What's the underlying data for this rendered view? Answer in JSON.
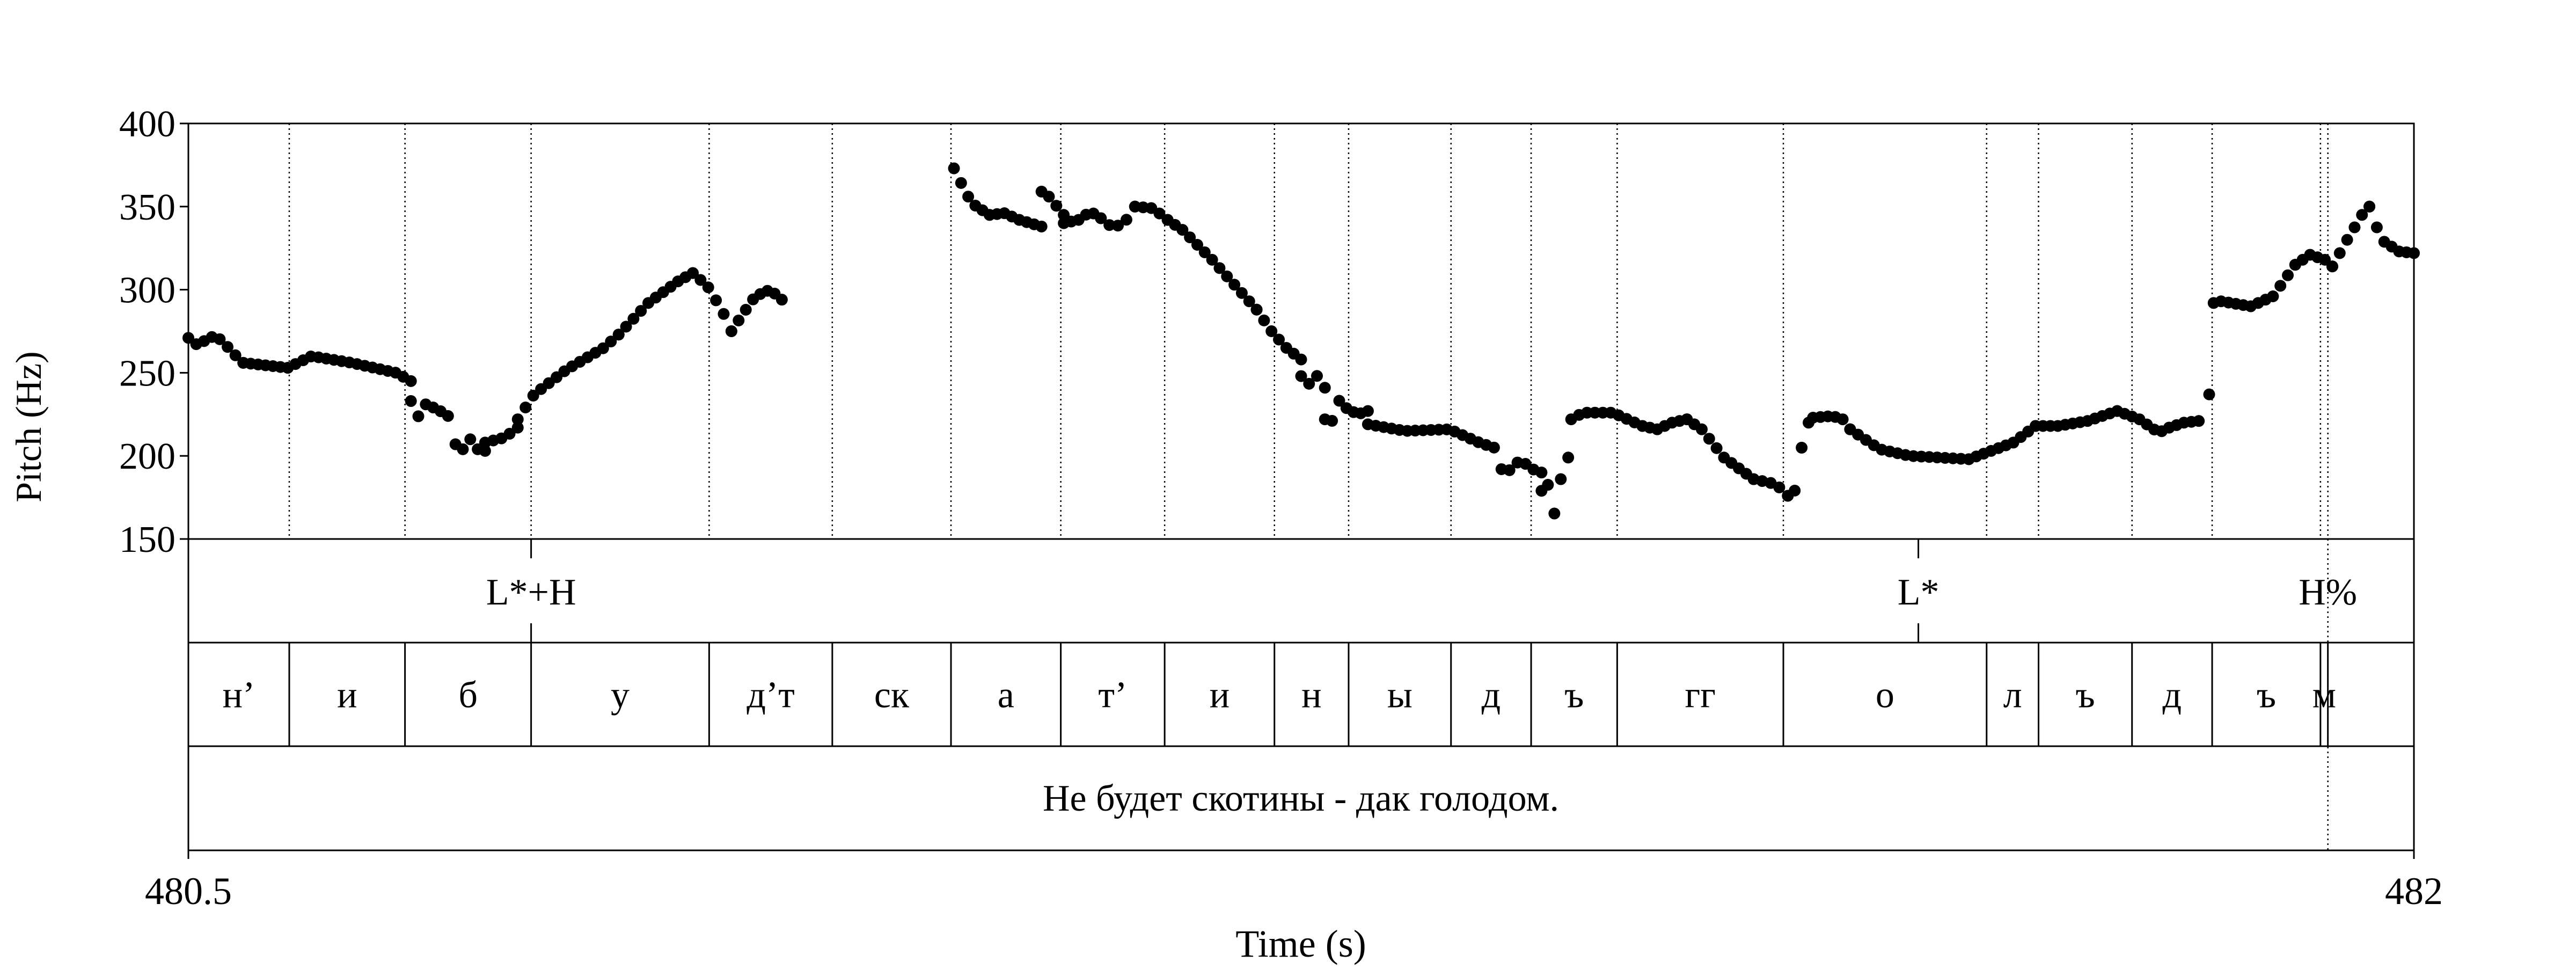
{
  "chart_data": {
    "type": "scatter",
    "xlabel": "Time (s)",
    "ylabel": "Pitch (Hz)",
    "xlim": [
      480.5,
      482
    ],
    "ylim": [
      150,
      400
    ],
    "x_ticks": [
      "480.5",
      "482"
    ],
    "y_ticks": [
      "400",
      "350",
      "300",
      "250",
      "200",
      "150"
    ],
    "y_tick_values": [
      400,
      350,
      300,
      250,
      200,
      150
    ],
    "boundaries": [
      480.5,
      480.568,
      480.646,
      480.731,
      480.851,
      480.934,
      481.014,
      481.088,
      481.158,
      481.232,
      481.282,
      481.351,
      481.405,
      481.463,
      481.575,
      481.712,
      481.747,
      481.81,
      481.864,
      481.937,
      481.942,
      482.0
    ],
    "segments": [
      "н’",
      "и",
      "б",
      "у",
      "д’т",
      "ск",
      "а",
      "т’",
      "и",
      "н",
      "ы",
      "д",
      "ъ",
      "гг",
      "о",
      "л",
      "ъ",
      "д",
      "ъ",
      "м"
    ],
    "tones": [
      {
        "label": "L*+H",
        "t": 480.731
      },
      {
        "label": "L*",
        "t": 481.666
      },
      {
        "label": "H%",
        "t": 481.942
      }
    ],
    "sentence": "Не будет скотины - дак голодом.",
    "sentence_marker_t": 481.942,
    "pitch_segments": [
      {
        "t0": 480.5,
        "t1": 480.537,
        "pts": [
          [
            480.5,
            271
          ],
          [
            480.507,
            266
          ],
          [
            480.514,
            272
          ],
          [
            480.522,
            270
          ],
          [
            480.53,
            262
          ],
          [
            480.537,
            256
          ]
        ]
      },
      {
        "t0": 480.537,
        "t1": 480.567,
        "pts": [
          [
            480.537,
            256
          ],
          [
            480.567,
            253
          ]
        ]
      },
      {
        "t0": 480.567,
        "t1": 480.65,
        "pts": [
          [
            480.567,
            253
          ],
          [
            480.583,
            260
          ],
          [
            480.61,
            256
          ],
          [
            480.64,
            250
          ],
          [
            480.65,
            245
          ]
        ]
      },
      {
        "t0": 480.65,
        "t1": 480.68,
        "pts": [
          [
            480.65,
            233
          ],
          [
            480.656,
            222
          ],
          [
            480.66,
            231
          ],
          [
            480.668,
            228
          ],
          [
            480.675,
            224
          ]
        ]
      },
      {
        "t0": 480.68,
        "t1": 480.7,
        "pts": [
          [
            480.68,
            207
          ],
          [
            480.685,
            204
          ],
          [
            480.69,
            210
          ],
          [
            480.695,
            204
          ],
          [
            480.7,
            203
          ]
        ]
      },
      {
        "t0": 480.7,
        "t1": 480.722,
        "pts": [
          [
            480.7,
            208
          ],
          [
            480.713,
            211
          ],
          [
            480.722,
            217
          ]
        ]
      },
      {
        "t0": 480.722,
        "t1": 480.79,
        "pts": [
          [
            480.722,
            222
          ],
          [
            480.733,
            237
          ],
          [
            480.755,
            252
          ],
          [
            480.78,
            265
          ],
          [
            480.79,
            273
          ]
        ]
      },
      {
        "t0": 480.79,
        "t1": 480.84,
        "pts": [
          [
            480.79,
            273
          ],
          [
            480.81,
            292
          ],
          [
            480.83,
            305
          ],
          [
            480.84,
            310
          ]
        ]
      },
      {
        "t0": 480.84,
        "t1": 480.866,
        "pts": [
          [
            480.84,
            310
          ],
          [
            480.85,
            302
          ],
          [
            480.86,
            287
          ],
          [
            480.866,
            275
          ]
        ]
      },
      {
        "t0": 480.866,
        "t1": 480.9,
        "pts": [
          [
            480.866,
            275
          ],
          [
            480.875,
            287
          ],
          [
            480.882,
            296
          ],
          [
            480.892,
            300
          ],
          [
            480.9,
            294
          ]
        ]
      },
      {
        "t0": 481.016,
        "t1": 481.04,
        "pts": [
          [
            481.016,
            373
          ],
          [
            481.022,
            362
          ],
          [
            481.028,
            352
          ],
          [
            481.04,
            345
          ]
        ]
      },
      {
        "t0": 481.04,
        "t1": 481.06,
        "pts": [
          [
            481.04,
            345
          ],
          [
            481.05,
            346
          ],
          [
            481.06,
            342
          ]
        ]
      },
      {
        "t0": 481.06,
        "t1": 481.075,
        "pts": [
          [
            481.06,
            342
          ],
          [
            481.075,
            338
          ]
        ]
      },
      {
        "t0": 481.075,
        "t1": 481.09,
        "pts": [
          [
            481.075,
            359
          ],
          [
            481.08,
            356
          ],
          [
            481.09,
            345
          ]
        ]
      },
      {
        "t0": 481.09,
        "t1": 481.115,
        "pts": [
          [
            481.09,
            340
          ],
          [
            481.1,
            342
          ],
          [
            481.108,
            347
          ],
          [
            481.115,
            343
          ]
        ]
      },
      {
        "t0": 481.115,
        "t1": 481.138,
        "pts": [
          [
            481.115,
            343
          ],
          [
            481.122,
            338
          ],
          [
            481.13,
            339
          ],
          [
            481.138,
            350
          ]
        ]
      },
      {
        "t0": 481.138,
        "t1": 481.16,
        "pts": [
          [
            481.138,
            350
          ],
          [
            481.15,
            349
          ],
          [
            481.16,
            342
          ]
        ]
      },
      {
        "t0": 481.16,
        "t1": 481.22,
        "pts": [
          [
            481.16,
            342
          ],
          [
            481.17,
            336
          ],
          [
            481.19,
            318
          ],
          [
            481.22,
            288
          ]
        ]
      },
      {
        "t0": 481.22,
        "t1": 481.25,
        "pts": [
          [
            481.22,
            288
          ],
          [
            481.23,
            275
          ],
          [
            481.24,
            265
          ],
          [
            481.25,
            258
          ]
        ]
      },
      {
        "t0": 481.25,
        "t1": 481.266,
        "pts": [
          [
            481.25,
            248
          ],
          [
            481.255,
            243
          ],
          [
            481.26,
            249
          ],
          [
            481.266,
            241
          ]
        ]
      },
      {
        "t0": 481.266,
        "t1": 481.295,
        "pts": [
          [
            481.266,
            222
          ],
          [
            481.27,
            219
          ],
          [
            481.276,
            234
          ],
          [
            481.28,
            229
          ],
          [
            481.288,
            225
          ],
          [
            481.295,
            227
          ]
        ]
      },
      {
        "t0": 481.295,
        "t1": 481.38,
        "pts": [
          [
            481.295,
            219
          ],
          [
            481.32,
            215
          ],
          [
            481.35,
            216
          ],
          [
            481.37,
            208
          ],
          [
            481.38,
            205
          ]
        ]
      },
      {
        "t0": 481.38,
        "t1": 481.412,
        "pts": [
          [
            481.385,
            192
          ],
          [
            481.39,
            191
          ],
          [
            481.395,
            196
          ],
          [
            481.4,
            196
          ],
          [
            481.406,
            192
          ],
          [
            481.412,
            190
          ]
        ]
      },
      {
        "t0": 481.412,
        "t1": 481.425,
        "pts": [
          [
            481.412,
            179
          ],
          [
            481.418,
            184
          ],
          [
            481.422,
            156
          ],
          [
            481.425,
            186
          ]
        ]
      },
      {
        "t0": 481.425,
        "t1": 481.43,
        "pts": [
          [
            481.43,
            199
          ]
        ]
      },
      {
        "t0": 481.43,
        "t1": 481.48,
        "pts": [
          [
            481.432,
            222
          ],
          [
            481.44,
            226
          ],
          [
            481.46,
            226
          ],
          [
            481.48,
            218
          ]
        ]
      },
      {
        "t0": 481.48,
        "t1": 481.51,
        "pts": [
          [
            481.48,
            218
          ],
          [
            481.49,
            216
          ],
          [
            481.5,
            220
          ],
          [
            481.51,
            222
          ]
        ]
      },
      {
        "t0": 481.51,
        "t1": 481.555,
        "pts": [
          [
            481.51,
            222
          ],
          [
            481.52,
            216
          ],
          [
            481.535,
            199
          ],
          [
            481.555,
            186
          ]
        ]
      },
      {
        "t0": 481.555,
        "t1": 481.578,
        "pts": [
          [
            481.555,
            186
          ],
          [
            481.57,
            183
          ],
          [
            481.578,
            176
          ]
        ]
      },
      {
        "t0": 481.578,
        "t1": 481.592,
        "pts": [
          [
            481.578,
            176
          ],
          [
            481.582,
            174
          ],
          [
            481.585,
            197
          ],
          [
            481.59,
            214
          ],
          [
            481.592,
            220
          ]
        ]
      },
      {
        "t0": 481.592,
        "t1": 481.62,
        "pts": [
          [
            481.595,
            223
          ],
          [
            481.608,
            224
          ],
          [
            481.615,
            222
          ],
          [
            481.62,
            216
          ]
        ]
      },
      {
        "t0": 481.62,
        "t1": 481.7,
        "pts": [
          [
            481.62,
            216
          ],
          [
            481.64,
            204
          ],
          [
            481.66,
            200
          ],
          [
            481.7,
            198
          ]
        ]
      },
      {
        "t0": 481.7,
        "t1": 481.745,
        "pts": [
          [
            481.7,
            198
          ],
          [
            481.715,
            203
          ],
          [
            481.73,
            208
          ],
          [
            481.745,
            218
          ]
        ]
      },
      {
        "t0": 481.745,
        "t1": 481.8,
        "pts": [
          [
            481.745,
            218
          ],
          [
            481.76,
            218
          ],
          [
            481.78,
            221
          ],
          [
            481.8,
            227
          ]
        ]
      },
      {
        "t0": 481.8,
        "t1": 481.835,
        "pts": [
          [
            481.8,
            227
          ],
          [
            481.815,
            222
          ],
          [
            481.828,
            214
          ],
          [
            481.835,
            217
          ]
        ]
      },
      {
        "t0": 481.835,
        "t1": 481.855,
        "pts": [
          [
            481.835,
            217
          ],
          [
            481.845,
            220
          ],
          [
            481.855,
            221
          ]
        ]
      },
      {
        "t0": 481.855,
        "t1": 481.862,
        "pts": [
          [
            481.862,
            237
          ]
        ]
      },
      {
        "t0": 481.862,
        "t1": 481.92,
        "pts": [
          [
            481.865,
            292
          ],
          [
            481.87,
            293
          ],
          [
            481.89,
            290
          ],
          [
            481.905,
            296
          ],
          [
            481.92,
            315
          ]
        ]
      },
      {
        "t0": 481.92,
        "t1": 481.945,
        "pts": [
          [
            481.92,
            315
          ],
          [
            481.93,
            321
          ],
          [
            481.94,
            318
          ],
          [
            481.945,
            314
          ]
        ]
      },
      {
        "t0": 481.945,
        "t1": 481.97,
        "pts": [
          [
            481.945,
            314
          ],
          [
            481.955,
            330
          ],
          [
            481.965,
            345
          ],
          [
            481.97,
            350
          ]
        ]
      },
      {
        "t0": 481.97,
        "t1": 482.0,
        "pts": [
          [
            481.97,
            350
          ],
          [
            481.978,
            330
          ],
          [
            481.99,
            323
          ],
          [
            482.0,
            322
          ]
        ]
      }
    ]
  }
}
